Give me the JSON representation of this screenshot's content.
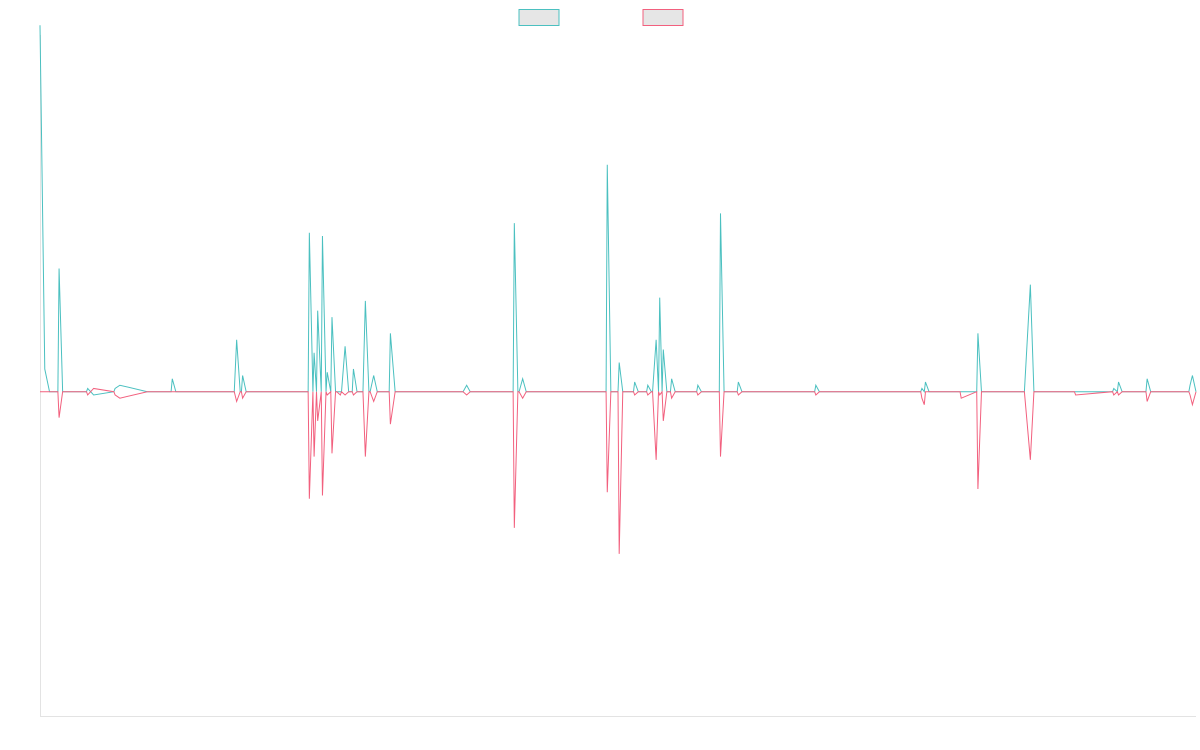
{
  "chart_data": {
    "type": "line",
    "title": "",
    "xlabel": "",
    "ylabel": "",
    "ylim": [
      -100,
      110
    ],
    "grid": false,
    "legend_position": "top-center",
    "series": [
      {
        "color": "#4bc0c0",
        "points": [
          [
            0,
            113
          ],
          [
            4,
            7
          ],
          [
            8,
            0
          ],
          [
            11,
            0
          ],
          [
            15,
            0
          ],
          [
            16,
            38
          ],
          [
            19,
            0
          ],
          [
            39,
            0
          ],
          [
            40,
            1
          ],
          [
            45,
            -1
          ],
          [
            62,
            0
          ],
          [
            63,
            1
          ],
          [
            67,
            2
          ],
          [
            90,
            0
          ],
          [
            91,
            0
          ],
          [
            110,
            0
          ],
          [
            111,
            4
          ],
          [
            114,
            0
          ],
          [
            162,
            0
          ],
          [
            163,
            0
          ],
          [
            165,
            16
          ],
          [
            168,
            0
          ],
          [
            169,
            0
          ],
          [
            170,
            5
          ],
          [
            173,
            0
          ],
          [
            174,
            0
          ],
          [
            175,
            0
          ],
          [
            225,
            0
          ],
          [
            226,
            49
          ],
          [
            229,
            0
          ],
          [
            230,
            12
          ],
          [
            232,
            0
          ],
          [
            233,
            25
          ],
          [
            236,
            0
          ],
          [
            237,
            48
          ],
          [
            240,
            0
          ],
          [
            241,
            6
          ],
          [
            244,
            0
          ],
          [
            245,
            23
          ],
          [
            248,
            0
          ],
          [
            249,
            0
          ],
          [
            252,
            0
          ],
          [
            253,
            0
          ],
          [
            256,
            14
          ],
          [
            259,
            0
          ],
          [
            262,
            0
          ],
          [
            263,
            7
          ],
          [
            266,
            0
          ],
          [
            267,
            0
          ],
          [
            270,
            0
          ],
          [
            271,
            0
          ],
          [
            273,
            28
          ],
          [
            276,
            0
          ],
          [
            277,
            0
          ],
          [
            280,
            5
          ],
          [
            283,
            0
          ],
          [
            293,
            0
          ],
          [
            294,
            18
          ],
          [
            298,
            0
          ],
          [
            309,
            0
          ],
          [
            310,
            0
          ],
          [
            312,
            0
          ],
          [
            354,
            0
          ],
          [
            355,
            0
          ],
          [
            358,
            2
          ],
          [
            361,
            0
          ],
          [
            397,
            0
          ],
          [
            398,
            52
          ],
          [
            401,
            0
          ],
          [
            402,
            0
          ],
          [
            405,
            4
          ],
          [
            408,
            0
          ],
          [
            435,
            0
          ],
          [
            436,
            0
          ],
          [
            470,
            0
          ],
          [
            471,
            0
          ],
          [
            475,
            0
          ],
          [
            476,
            70
          ],
          [
            479,
            0
          ],
          [
            480,
            0
          ],
          [
            485,
            0
          ],
          [
            486,
            9
          ],
          [
            489,
            0
          ],
          [
            498,
            0
          ],
          [
            499,
            3
          ],
          [
            502,
            0
          ],
          [
            509,
            0
          ],
          [
            510,
            2
          ],
          [
            513,
            0
          ],
          [
            514,
            0
          ],
          [
            517,
            16
          ],
          [
            519,
            0
          ],
          [
            520,
            29
          ],
          [
            522,
            0
          ],
          [
            523,
            13
          ],
          [
            526,
            0
          ],
          [
            529,
            0
          ],
          [
            530,
            4
          ],
          [
            533,
            0
          ],
          [
            537,
            0
          ],
          [
            538,
            0
          ],
          [
            551,
            0
          ],
          [
            552,
            2
          ],
          [
            555,
            0
          ],
          [
            565,
            0
          ],
          [
            566,
            0
          ],
          [
            570,
            0
          ],
          [
            571,
            55
          ],
          [
            574,
            0
          ],
          [
            580,
            0
          ],
          [
            581,
            0
          ],
          [
            585,
            0
          ],
          [
            586,
            3
          ],
          [
            589,
            0
          ],
          [
            590,
            0
          ],
          [
            621,
            0
          ],
          [
            622,
            0
          ],
          [
            650,
            0
          ],
          [
            651,
            2
          ],
          [
            654,
            0
          ],
          [
            686,
            0
          ],
          [
            687,
            0
          ],
          [
            739,
            0
          ],
          [
            740,
            1
          ],
          [
            742,
            0
          ],
          [
            743,
            3
          ],
          [
            746,
            0
          ],
          [
            751,
            0
          ],
          [
            752,
            0
          ],
          [
            762,
            0
          ],
          [
            763,
            0
          ],
          [
            772,
            0
          ],
          [
            773,
            0
          ],
          [
            786,
            0
          ],
          [
            787,
            18
          ],
          [
            790,
            0
          ],
          [
            797,
            0
          ],
          [
            798,
            0
          ],
          [
            826,
            0
          ],
          [
            831,
            33
          ],
          [
            834,
            0
          ],
          [
            865,
            0
          ],
          [
            866,
            0
          ],
          [
            868,
            0
          ],
          [
            869,
            0
          ],
          [
            900,
            0
          ],
          [
            901,
            1
          ],
          [
            904,
            0
          ],
          [
            905,
            3
          ],
          [
            908,
            0
          ],
          [
            928,
            0
          ],
          [
            929,
            4
          ],
          [
            932,
            0
          ],
          [
            964,
            0
          ],
          [
            965,
            2
          ],
          [
            967,
            5
          ],
          [
            970,
            0
          ]
        ]
      },
      {
        "color": "#f2607e",
        "points": [
          [
            0,
            0
          ],
          [
            4,
            0
          ],
          [
            8,
            0
          ],
          [
            11,
            0
          ],
          [
            15,
            0
          ],
          [
            16,
            -8
          ],
          [
            19,
            0
          ],
          [
            39,
            0
          ],
          [
            40,
            -1
          ],
          [
            45,
            1
          ],
          [
            62,
            0
          ],
          [
            63,
            -1
          ],
          [
            67,
            -2
          ],
          [
            90,
            0
          ],
          [
            91,
            0
          ],
          [
            110,
            0
          ],
          [
            111,
            0
          ],
          [
            114,
            0
          ],
          [
            162,
            0
          ],
          [
            163,
            0
          ],
          [
            165,
            -3
          ],
          [
            168,
            0
          ],
          [
            169,
            0
          ],
          [
            170,
            -2
          ],
          [
            173,
            0
          ],
          [
            174,
            0
          ],
          [
            175,
            0
          ],
          [
            225,
            0
          ],
          [
            226,
            -33
          ],
          [
            229,
            0
          ],
          [
            230,
            -20
          ],
          [
            232,
            0
          ],
          [
            233,
            -9
          ],
          [
            236,
            0
          ],
          [
            237,
            -32
          ],
          [
            240,
            0
          ],
          [
            241,
            -1
          ],
          [
            244,
            0
          ],
          [
            245,
            -19
          ],
          [
            248,
            0
          ],
          [
            249,
            0
          ],
          [
            252,
            -1
          ],
          [
            253,
            0
          ],
          [
            256,
            -1
          ],
          [
            259,
            0
          ],
          [
            262,
            0
          ],
          [
            263,
            -1
          ],
          [
            266,
            0
          ],
          [
            267,
            0
          ],
          [
            270,
            0
          ],
          [
            271,
            0
          ],
          [
            273,
            -20
          ],
          [
            276,
            0
          ],
          [
            277,
            0
          ],
          [
            280,
            -3
          ],
          [
            283,
            0
          ],
          [
            293,
            0
          ],
          [
            294,
            -10
          ],
          [
            298,
            0
          ],
          [
            309,
            0
          ],
          [
            310,
            0
          ],
          [
            312,
            0
          ],
          [
            354,
            0
          ],
          [
            355,
            0
          ],
          [
            358,
            -1
          ],
          [
            361,
            0
          ],
          [
            397,
            0
          ],
          [
            398,
            -42
          ],
          [
            401,
            0
          ],
          [
            402,
            0
          ],
          [
            405,
            -2
          ],
          [
            408,
            0
          ],
          [
            435,
            0
          ],
          [
            436,
            0
          ],
          [
            470,
            0
          ],
          [
            471,
            0
          ],
          [
            475,
            0
          ],
          [
            476,
            -31
          ],
          [
            479,
            0
          ],
          [
            480,
            0
          ],
          [
            485,
            0
          ],
          [
            486,
            -50
          ],
          [
            489,
            0
          ],
          [
            498,
            0
          ],
          [
            499,
            -1
          ],
          [
            502,
            0
          ],
          [
            509,
            0
          ],
          [
            510,
            -1
          ],
          [
            513,
            0
          ],
          [
            514,
            0
          ],
          [
            517,
            -21
          ],
          [
            519,
            0
          ],
          [
            520,
            -1
          ],
          [
            522,
            0
          ],
          [
            523,
            -9
          ],
          [
            526,
            0
          ],
          [
            529,
            0
          ],
          [
            530,
            -2
          ],
          [
            533,
            0
          ],
          [
            537,
            0
          ],
          [
            538,
            0
          ],
          [
            551,
            0
          ],
          [
            552,
            -1
          ],
          [
            555,
            0
          ],
          [
            565,
            0
          ],
          [
            566,
            0
          ],
          [
            570,
            0
          ],
          [
            571,
            -20
          ],
          [
            574,
            0
          ],
          [
            580,
            0
          ],
          [
            581,
            0
          ],
          [
            585,
            0
          ],
          [
            586,
            -1
          ],
          [
            589,
            0
          ],
          [
            590,
            0
          ],
          [
            621,
            0
          ],
          [
            622,
            0
          ],
          [
            650,
            0
          ],
          [
            651,
            -1
          ],
          [
            654,
            0
          ],
          [
            686,
            0
          ],
          [
            687,
            0
          ],
          [
            739,
            0
          ],
          [
            740,
            -2
          ],
          [
            742,
            -4
          ],
          [
            743,
            0
          ],
          [
            746,
            0
          ],
          [
            751,
            0
          ],
          [
            752,
            0
          ],
          [
            762,
            0
          ],
          [
            763,
            0
          ],
          [
            772,
            0
          ],
          [
            773,
            -2
          ],
          [
            786,
            0
          ],
          [
            787,
            -30
          ],
          [
            790,
            0
          ],
          [
            797,
            0
          ],
          [
            798,
            0
          ],
          [
            826,
            0
          ],
          [
            831,
            -21
          ],
          [
            834,
            0
          ],
          [
            865,
            0
          ],
          [
            866,
            0
          ],
          [
            868,
            0
          ],
          [
            869,
            -1
          ],
          [
            900,
            0
          ],
          [
            901,
            -1
          ],
          [
            904,
            0
          ],
          [
            905,
            -1
          ],
          [
            908,
            0
          ],
          [
            928,
            0
          ],
          [
            929,
            -3
          ],
          [
            932,
            0
          ],
          [
            964,
            0
          ],
          [
            965,
            -1
          ],
          [
            967,
            -4
          ],
          [
            970,
            0
          ]
        ]
      }
    ]
  }
}
